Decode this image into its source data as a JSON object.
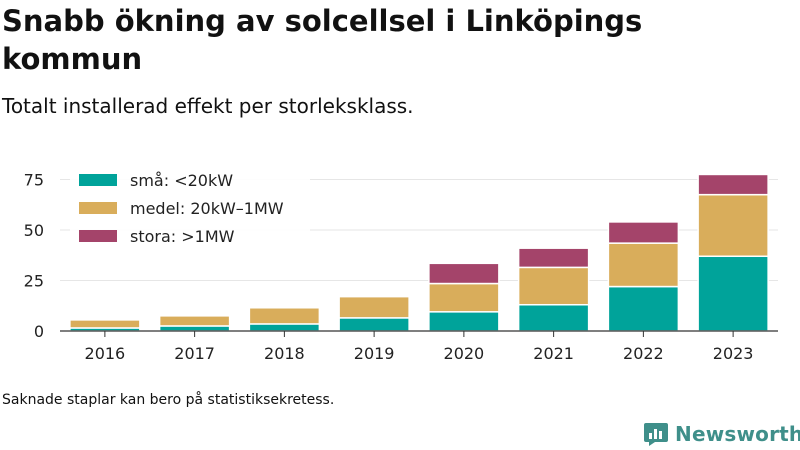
{
  "header": {
    "title": "Snabb ökning av solcellsel i Linköpings kommun",
    "subtitle": "Totalt installerad effekt per storleksklass."
  },
  "footer": {
    "note": "Saknade staplar kan bero på statistiksekretess.",
    "brand": "Newsworthy"
  },
  "colors": {
    "brand": "#3f8f8a",
    "sma": "#00a39a",
    "medel": "#d9ad5b",
    "stora": "#a4446a"
  },
  "chart_data": {
    "type": "bar",
    "stacked": true,
    "categories": [
      "2016",
      "2017",
      "2018",
      "2019",
      "2020",
      "2021",
      "2022",
      "2023"
    ],
    "series": [
      {
        "name": "små: <20kW",
        "color": "#00a39a",
        "values": [
          1.5,
          2.5,
          3.5,
          6.5,
          9.5,
          13,
          22,
          37
        ]
      },
      {
        "name": "medel: 20kW–1MW",
        "color": "#d9ad5b",
        "values": [
          4,
          5,
          8,
          10.5,
          14,
          18.5,
          21.5,
          30.5
        ]
      },
      {
        "name": "stora: >1MW",
        "color": "#a4446a",
        "values": [
          0,
          0,
          0,
          0,
          10,
          9.5,
          10.5,
          10
        ]
      }
    ],
    "yticks": [
      0,
      25,
      50,
      75
    ],
    "ylim": [
      0,
      80
    ],
    "grid": true,
    "legend": "top-left",
    "xlabel": "",
    "ylabel": ""
  }
}
